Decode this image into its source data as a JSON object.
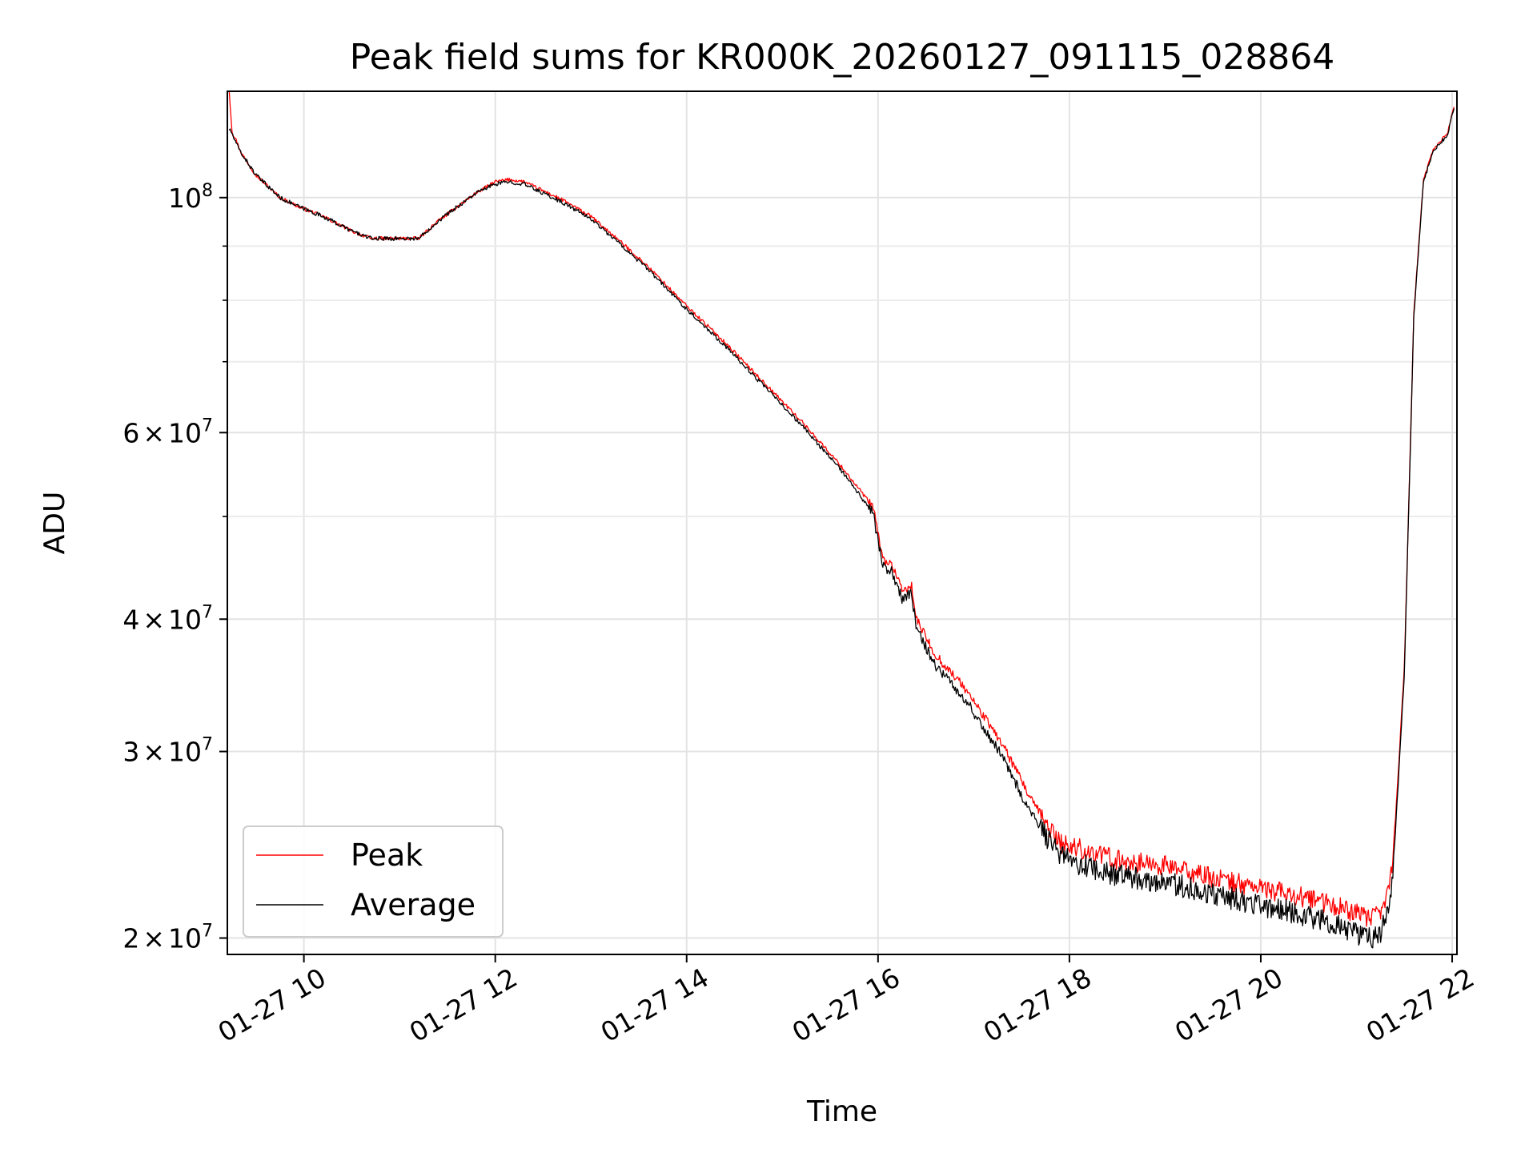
{
  "chart_data": {
    "type": "line",
    "title": "Peak field sums for KR000K_20260127_091115_028864",
    "xlabel": "Time",
    "ylabel": "ADU",
    "xlim": [
      9.2,
      22.05
    ],
    "ylim": [
      19300000,
      126000000
    ],
    "yscale": "log",
    "grid": true,
    "legend_position": "lower-left",
    "x_ticks": [
      {
        "value": 10,
        "label": "01-27 10"
      },
      {
        "value": 12,
        "label": "01-27 12"
      },
      {
        "value": 14,
        "label": "01-27 14"
      },
      {
        "value": 16,
        "label": "01-27 16"
      },
      {
        "value": 18,
        "label": "01-27 18"
      },
      {
        "value": 20,
        "label": "01-27 20"
      },
      {
        "value": 22,
        "label": "01-27 22"
      }
    ],
    "y_major_ticks": [
      {
        "value": 20000000,
        "mant": "2",
        "exp": "7"
      },
      {
        "value": 30000000,
        "mant": "3",
        "exp": "7"
      },
      {
        "value": 40000000,
        "mant": "4",
        "exp": "7"
      },
      {
        "value": 60000000,
        "mant": "6",
        "exp": "7"
      },
      {
        "value": 100000000,
        "mant": "",
        "exp": "8"
      }
    ],
    "y_minor_ticks": [
      50000000,
      70000000,
      80000000,
      90000000
    ],
    "series": [
      {
        "name": "Peak",
        "color": "#ff0000",
        "x": [
          9.22,
          9.25,
          9.28,
          9.35,
          9.5,
          9.75,
          9.95,
          10.2,
          10.5,
          10.7,
          10.9,
          11.2,
          11.4,
          11.6,
          11.8,
          12.0,
          12.15,
          12.3,
          12.5,
          12.7,
          13.0,
          13.3,
          13.6,
          14.0,
          14.4,
          14.8,
          15.2,
          15.6,
          15.95,
          16.05,
          16.15,
          16.25,
          16.35,
          16.4,
          16.6,
          16.9,
          17.3,
          17.6,
          17.9,
          18.1,
          18.5,
          19.0,
          19.5,
          20.0,
          20.5,
          20.9,
          21.1,
          21.25,
          21.32,
          21.38,
          21.5,
          21.6,
          21.7,
          21.8,
          21.95,
          22.02
        ],
        "y": [
          126000000,
          115000000,
          114000000,
          110000000,
          105000000,
          100000000,
          98000000,
          96000000,
          93000000,
          91500000,
          91500000,
          91500000,
          95000000,
          98000000,
          101000000,
          103500000,
          104000000,
          103500000,
          101500000,
          99500000,
          96000000,
          91000000,
          86000000,
          79000000,
          73000000,
          67000000,
          61500000,
          56000000,
          51000000,
          45500000,
          45000000,
          42500000,
          43000000,
          40000000,
          37000000,
          34500000,
          30500000,
          27000000,
          24600000,
          24300000,
          23700000,
          23400000,
          22800000,
          22300000,
          21800000,
          21300000,
          20900000,
          21000000,
          22000000,
          23500000,
          36000000,
          78000000,
          104000000,
          111000000,
          115000000,
          122000000
        ],
        "noise_amplitude": 0.022,
        "noise_start_x": 17.7
      },
      {
        "name": "Average",
        "color": "#000000",
        "x": [
          9.22,
          9.25,
          9.28,
          9.35,
          9.5,
          9.75,
          9.95,
          10.2,
          10.5,
          10.7,
          10.9,
          11.2,
          11.4,
          11.6,
          11.8,
          12.0,
          12.15,
          12.3,
          12.5,
          12.7,
          13.0,
          13.3,
          13.6,
          14.0,
          14.4,
          14.8,
          15.2,
          15.6,
          15.95,
          16.05,
          16.15,
          16.25,
          16.35,
          16.4,
          16.6,
          16.9,
          17.3,
          17.6,
          17.9,
          18.1,
          18.5,
          19.0,
          19.5,
          20.0,
          20.5,
          20.9,
          21.1,
          21.25,
          21.32,
          21.38,
          21.5,
          21.6,
          21.7,
          21.8,
          21.95,
          22.02
        ],
        "y": [
          116000000,
          115000000,
          113000000,
          110000000,
          105000000,
          100000000,
          98000000,
          96000000,
          93000000,
          91500000,
          91500000,
          91500000,
          95000000,
          98000000,
          101000000,
          103000000,
          103500000,
          103000000,
          101000000,
          99000000,
          95500000,
          90500000,
          85500000,
          78500000,
          72500000,
          66500000,
          61000000,
          55500000,
          50300000,
          44800000,
          44300000,
          41800000,
          42300000,
          39200000,
          36200000,
          33700000,
          29700000,
          26200000,
          23900000,
          23500000,
          22900000,
          22600000,
          22000000,
          21500000,
          21000000,
          20400000,
          20000000,
          20100000,
          21200000,
          22800000,
          35500000,
          77500000,
          103500000,
          110500000,
          114500000,
          121500000
        ],
        "noise_amplitude": 0.025,
        "noise_start_x": 17.7
      }
    ]
  }
}
